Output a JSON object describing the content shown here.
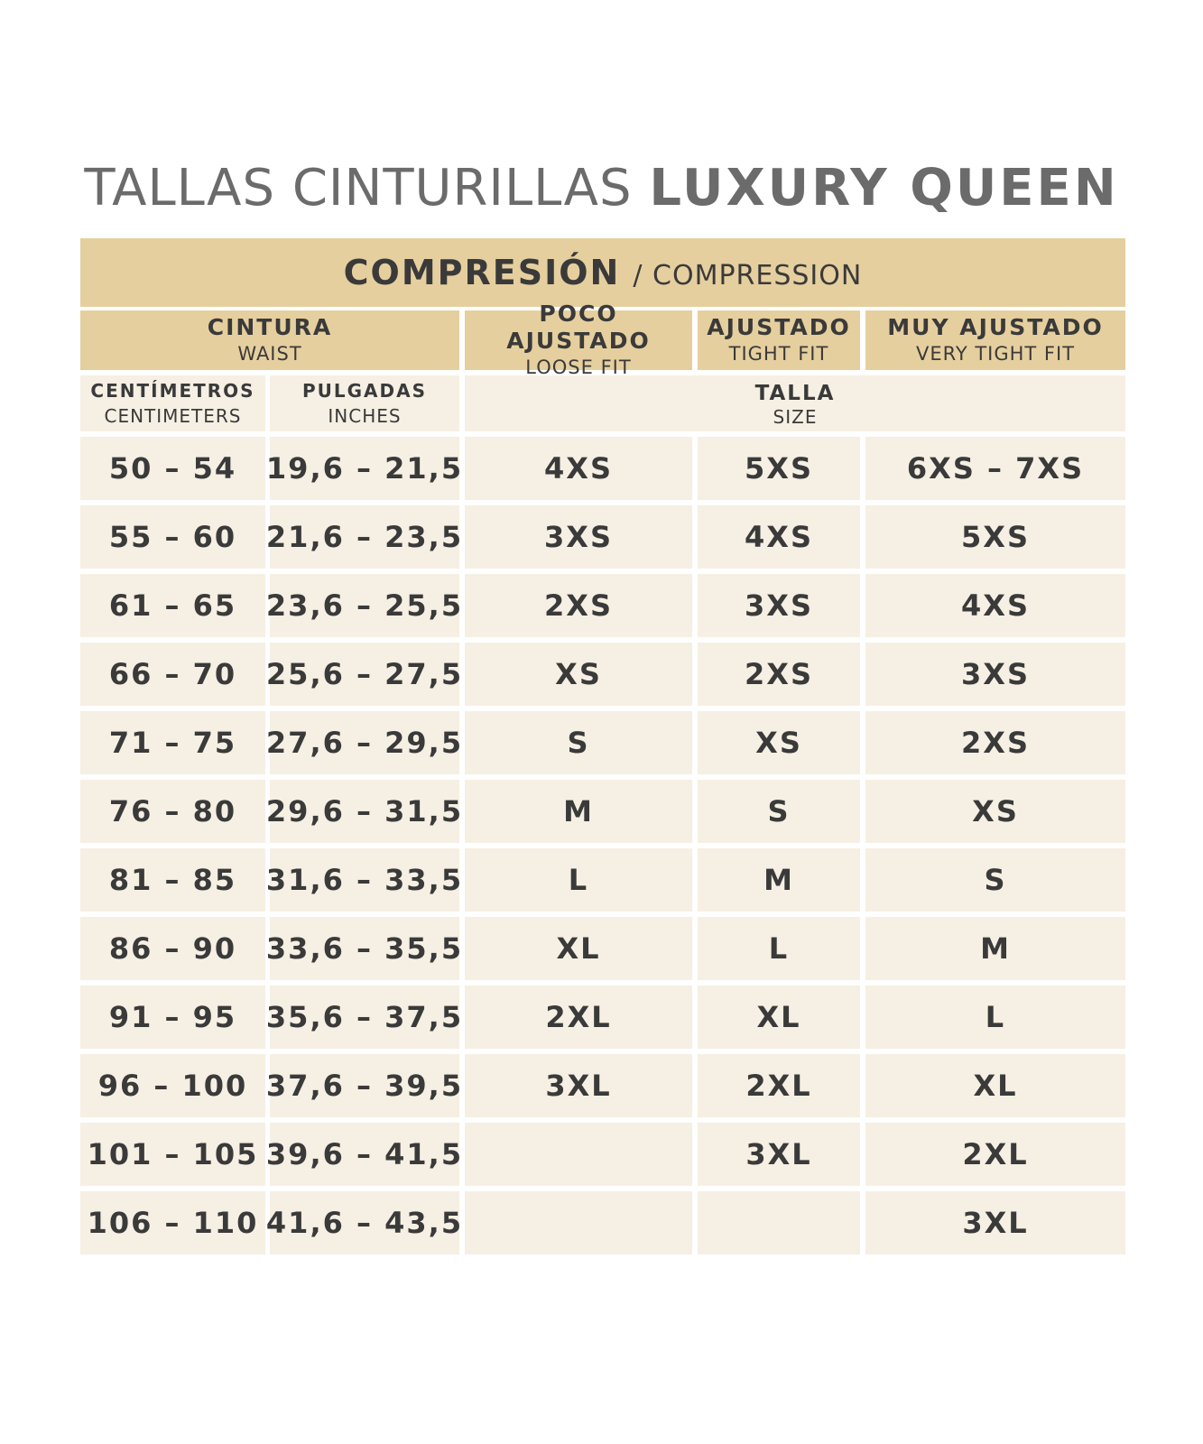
{
  "title": {
    "light": "TALLAS CINTURILLAS",
    "bold": "LUXURY QUEEN"
  },
  "banner": {
    "es": "COMPRESIÓN",
    "en": "/ COMPRESSION"
  },
  "headers": {
    "waist": {
      "es": "CINTURA",
      "en": "WAIST"
    },
    "loose": {
      "es": "POCO AJUSTADO",
      "en": "LOOSE FIT"
    },
    "tight": {
      "es": "AJUSTADO",
      "en": "TIGHT FIT"
    },
    "very_tight": {
      "es": "MUY AJUSTADO",
      "en": "VERY TIGHT FIT"
    },
    "centimeters": {
      "es": "CENTÍMETROS",
      "en": "CENTIMETERS"
    },
    "inches": {
      "es": "PULGADAS",
      "en": "INCHES"
    },
    "size": {
      "es": "TALLA",
      "en": "SIZE"
    }
  },
  "colors": {
    "gold": "#e6cf9e",
    "cream": "#f6efe3",
    "text": "#3a3a3a",
    "title": "#6b6b6b"
  },
  "rows": [
    {
      "cm": "50 – 54",
      "in": "19,6 – 21,5",
      "loose": "4XS",
      "tight": "5XS",
      "very": "6XS – 7XS"
    },
    {
      "cm": "55 – 60",
      "in": "21,6 – 23,5",
      "loose": "3XS",
      "tight": "4XS",
      "very": "5XS"
    },
    {
      "cm": "61 – 65",
      "in": "23,6 – 25,5",
      "loose": "2XS",
      "tight": "3XS",
      "very": "4XS"
    },
    {
      "cm": "66 – 70",
      "in": "25,6 – 27,5",
      "loose": "XS",
      "tight": "2XS",
      "very": "3XS"
    },
    {
      "cm": "71 – 75",
      "in": "27,6 – 29,5",
      "loose": "S",
      "tight": "XS",
      "very": "2XS"
    },
    {
      "cm": "76 – 80",
      "in": "29,6 – 31,5",
      "loose": "M",
      "tight": "S",
      "very": "XS"
    },
    {
      "cm": "81 – 85",
      "in": "31,6 – 33,5",
      "loose": "L",
      "tight": "M",
      "very": "S"
    },
    {
      "cm": "86 – 90",
      "in": "33,6 – 35,5",
      "loose": "XL",
      "tight": "L",
      "very": "M"
    },
    {
      "cm": "91 – 95",
      "in": "35,6 – 37,5",
      "loose": "2XL",
      "tight": "XL",
      "very": "L"
    },
    {
      "cm": "96 – 100",
      "in": "37,6 – 39,5",
      "loose": "3XL",
      "tight": "2XL",
      "very": "XL"
    },
    {
      "cm": "101 – 105",
      "in": "39,6 – 41,5",
      "loose": "",
      "tight": "3XL",
      "very": "2XL"
    },
    {
      "cm": "106 – 110",
      "in": "41,6 – 43,5",
      "loose": "",
      "tight": "",
      "very": "3XL"
    }
  ]
}
